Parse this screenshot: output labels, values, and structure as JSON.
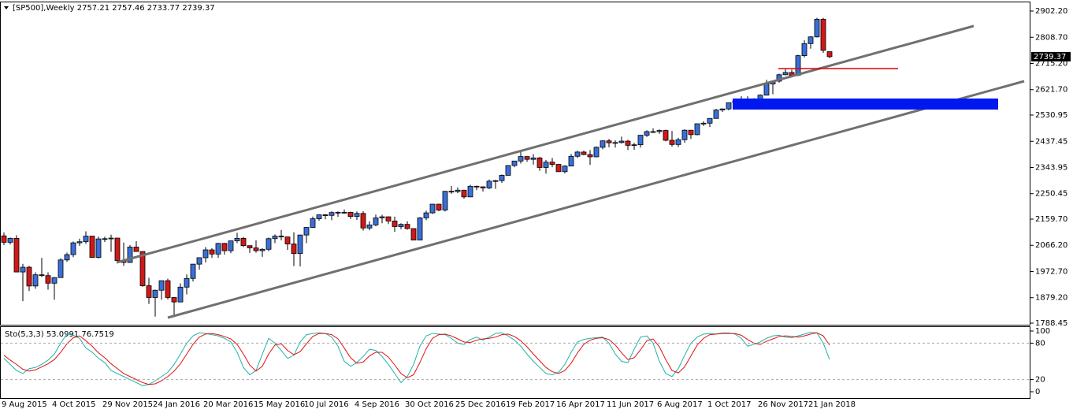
{
  "chart_data": [
    {
      "type": "candlestick",
      "title": "[SP500],Weekly  2757.21 2757.46 2733.77 2739.37",
      "price_label": "2739.37",
      "up_color": "#3a6fd8",
      "down_color": "#d01818",
      "ylim": [
        1782.8,
        2936.0
      ],
      "yticks": [
        {
          "value": 2902.2,
          "label": "2902.20"
        },
        {
          "value": 2808.7,
          "label": "2808.70"
        },
        {
          "value": 2715.2,
          "label": "2715.20"
        },
        {
          "value": 2621.7,
          "label": "2621.70"
        },
        2530.95,
        2437.45,
        2343.95,
        2250.45,
        {
          "value": 2159.7,
          "label": "2159.70"
        },
        {
          "value": 2066.2,
          "label": "2066.20"
        },
        {
          "value": 1972.7,
          "label": "1972.70"
        },
        {
          "value": 1879.2,
          "label": "1879.20"
        },
        1788.45
      ],
      "categories": [
        null,
        "9 Aug 2015",
        null,
        null,
        null,
        null,
        null,
        null,
        null,
        "4 Oct 2015",
        null,
        null,
        null,
        null,
        null,
        null,
        null,
        "29 Nov 2015",
        null,
        null,
        null,
        null,
        null,
        null,
        null,
        "24 Jan 2016",
        null,
        null,
        null,
        null,
        null,
        null,
        null,
        "20 Mar 2016",
        null,
        null,
        null,
        null,
        null,
        null,
        null,
        "15 May 2016",
        null,
        null,
        null,
        null,
        null,
        null,
        null,
        "10 Jul 2016",
        null,
        null,
        null,
        null,
        null,
        null,
        null,
        "4 Sep 2016",
        null,
        null,
        null,
        null,
        null,
        null,
        null,
        "30 Oct 2016",
        null,
        null,
        null,
        null,
        null,
        null,
        null,
        "25 Dec 2016",
        null,
        null,
        null,
        null,
        null,
        null,
        null,
        "19 Feb 2017",
        null,
        null,
        null,
        null,
        null,
        null,
        null,
        "16 Apr 2017",
        null,
        null,
        null,
        null,
        null,
        null,
        null,
        "11 Jun 2017",
        null,
        null,
        null,
        null,
        null,
        null,
        null,
        "6 Aug 2017",
        null,
        null,
        null,
        null,
        null,
        null,
        null,
        "1 Oct 2017",
        null,
        null,
        null,
        null,
        null,
        null,
        null,
        "26 Nov 2017",
        null,
        null,
        null,
        null,
        null,
        null,
        null,
        "21 Jan 2018",
        null,
        null
      ],
      "candles": [
        [
          2100,
          2112,
          2067,
          2077
        ],
        [
          2077,
          2094,
          2069,
          2091
        ],
        [
          2091,
          2102,
          1970,
          1971
        ],
        [
          1971,
          2000,
          1867,
          1988
        ],
        [
          1988,
          1993,
          1903,
          1921
        ],
        [
          1921,
          1970,
          1911,
          1961
        ],
        [
          1961,
          2021,
          1953,
          1958
        ],
        [
          1958,
          1970,
          1908,
          1931
        ],
        [
          1931,
          1953,
          1872,
          1951
        ],
        [
          1951,
          2020,
          1950,
          2014
        ],
        [
          2014,
          2040,
          2007,
          2033
        ],
        [
          2033,
          2080,
          2024,
          2075
        ],
        [
          2075,
          2090,
          2064,
          2079
        ],
        [
          2079,
          2116,
          2071,
          2099
        ],
        [
          2099,
          2100,
          2022,
          2023
        ],
        [
          2023,
          2097,
          2019,
          2089
        ],
        [
          2089,
          2097,
          2078,
          2090
        ],
        [
          2090,
          2104,
          2043,
          2092
        ],
        [
          2092,
          2093,
          2011,
          2012
        ],
        [
          2012,
          2076,
          1993,
          2005
        ],
        [
          2005,
          2067,
          2004,
          2060
        ],
        [
          2060,
          2081,
          2043,
          2044
        ],
        [
          2044,
          2045,
          1918,
          1922
        ],
        [
          1922,
          1950,
          1857,
          1880
        ],
        [
          1880,
          1908,
          1812,
          1906
        ],
        [
          1906,
          1940,
          1872,
          1940
        ],
        [
          1940,
          1947,
          1873,
          1880
        ],
        [
          1880,
          1881,
          1810,
          1864
        ],
        [
          1864,
          1930,
          1863,
          1917
        ],
        [
          1917,
          1962,
          1891,
          1948
        ],
        [
          1948,
          2000,
          1937,
          1999
        ],
        [
          1999,
          2023,
          1979,
          2022
        ],
        [
          2022,
          2060,
          2005,
          2050
        ],
        [
          2050,
          2056,
          2022,
          2035
        ],
        [
          2035,
          2075,
          2022,
          2073
        ],
        [
          2073,
          2075,
          2033,
          2047
        ],
        [
          2047,
          2083,
          2038,
          2082
        ],
        [
          2082,
          2111,
          2074,
          2091
        ],
        [
          2091,
          2096,
          2060,
          2065
        ],
        [
          2065,
          2066,
          2039,
          2057
        ],
        [
          2057,
          2084,
          2040,
          2047
        ],
        [
          2047,
          2056,
          2025,
          2052
        ],
        [
          2052,
          2094,
          2045,
          2090
        ],
        [
          2090,
          2105,
          2074,
          2099
        ],
        [
          2099,
          2121,
          2084,
          2096
        ],
        [
          2096,
          2097,
          2050,
          2071
        ],
        [
          2071,
          2113,
          1992,
          2037
        ],
        [
          2037,
          2104,
          1991,
          2103
        ],
        [
          2103,
          2131,
          2074,
          2130
        ],
        [
          2130,
          2169,
          2128,
          2161
        ],
        [
          2161,
          2176,
          2154,
          2175
        ],
        [
          2175,
          2178,
          2159,
          2173
        ],
        [
          2173,
          2188,
          2156,
          2183
        ],
        [
          2183,
          2187,
          2168,
          2184
        ],
        [
          2184,
          2194,
          2179,
          2184
        ],
        [
          2184,
          2186,
          2160,
          2169
        ],
        [
          2169,
          2187,
          2157,
          2180
        ],
        [
          2180,
          2188,
          2119,
          2128
        ],
        [
          2128,
          2152,
          2120,
          2139
        ],
        [
          2139,
          2176,
          2134,
          2164
        ],
        [
          2164,
          2175,
          2145,
          2168
        ],
        [
          2168,
          2169,
          2142,
          2153
        ],
        [
          2153,
          2169,
          2114,
          2133
        ],
        [
          2133,
          2145,
          2124,
          2141
        ],
        [
          2141,
          2152,
          2122,
          2126
        ],
        [
          2126,
          2127,
          2084,
          2085
        ],
        [
          2085,
          2167,
          2084,
          2164
        ],
        [
          2164,
          2190,
          2156,
          2182
        ],
        [
          2182,
          2214,
          2178,
          2213
        ],
        [
          2213,
          2214,
          2188,
          2192
        ],
        [
          2192,
          2260,
          2187,
          2259
        ],
        [
          2259,
          2278,
          2250,
          2258
        ],
        [
          2258,
          2273,
          2252,
          2263
        ],
        [
          2263,
          2264,
          2233,
          2239
        ],
        [
          2239,
          2282,
          2238,
          2277
        ],
        [
          2277,
          2279,
          2263,
          2275
        ],
        [
          2275,
          2276,
          2258,
          2271
        ],
        [
          2271,
          2301,
          2267,
          2295
        ],
        [
          2295,
          2300,
          2268,
          2297
        ],
        [
          2297,
          2319,
          2289,
          2316
        ],
        [
          2316,
          2352,
          2315,
          2351
        ],
        [
          2351,
          2368,
          2345,
          2367
        ],
        [
          2367,
          2401,
          2358,
          2383
        ],
        [
          2383,
          2384,
          2364,
          2373
        ],
        [
          2373,
          2391,
          2354,
          2378
        ],
        [
          2378,
          2382,
          2332,
          2344
        ],
        [
          2344,
          2371,
          2322,
          2363
        ],
        [
          2363,
          2378,
          2345,
          2355
        ],
        [
          2355,
          2357,
          2328,
          2329
        ],
        [
          2329,
          2352,
          2323,
          2349
        ],
        [
          2349,
          2392,
          2348,
          2384
        ],
        [
          2384,
          2404,
          2378,
          2399
        ],
        [
          2399,
          2404,
          2388,
          2390
        ],
        [
          2390,
          2406,
          2353,
          2382
        ],
        [
          2382,
          2419,
          2380,
          2416
        ],
        [
          2416,
          2441,
          2409,
          2439
        ],
        [
          2439,
          2446,
          2416,
          2432
        ],
        [
          2432,
          2441,
          2415,
          2433
        ],
        [
          2433,
          2454,
          2429,
          2438
        ],
        [
          2438,
          2443,
          2406,
          2423
        ],
        [
          2423,
          2432,
          2407,
          2425
        ],
        [
          2425,
          2460,
          2415,
          2459
        ],
        [
          2459,
          2477,
          2453,
          2472
        ],
        [
          2472,
          2484,
          2467,
          2472
        ],
        [
          2472,
          2480,
          2464,
          2476
        ],
        [
          2476,
          2479,
          2437,
          2441
        ],
        [
          2441,
          2474,
          2418,
          2426
        ],
        [
          2426,
          2450,
          2417,
          2443
        ],
        [
          2443,
          2480,
          2432,
          2477
        ],
        [
          2477,
          2477,
          2446,
          2461
        ],
        [
          2461,
          2500,
          2459,
          2500
        ],
        [
          2500,
          2509,
          2492,
          2502
        ],
        [
          2502,
          2520,
          2488,
          2519
        ],
        [
          2519,
          2553,
          2518,
          2549
        ],
        [
          2549,
          2555,
          2542,
          2553
        ],
        [
          2553,
          2575,
          2548,
          2575
        ],
        [
          2575,
          2583,
          2556,
          2581
        ],
        [
          2581,
          2598,
          2566,
          2588
        ],
        [
          2588,
          2598,
          2573,
          2582
        ],
        [
          2582,
          2591,
          2557,
          2579
        ],
        [
          2579,
          2605,
          2578,
          2602
        ],
        [
          2602,
          2657,
          2601,
          2642
        ],
        [
          2642,
          2652,
          2605,
          2652
        ],
        [
          2652,
          2679,
          2647,
          2675
        ],
        [
          2675,
          2695,
          2673,
          2683
        ],
        [
          2683,
          2693,
          2669,
          2673
        ],
        [
          2673,
          2746,
          2670,
          2743
        ],
        [
          2743,
          2798,
          2737,
          2786
        ],
        [
          2786,
          2813,
          2768,
          2810
        ],
        [
          2810,
          2878,
          2808,
          2873
        ],
        [
          2873,
          2878,
          2753,
          2762
        ],
        [
          2757.21,
          2757.46,
          2733.77,
          2739.37
        ]
      ]
    },
    {
      "type": "line",
      "title": "Sto(5,3,3) 53.0991 76.7519",
      "ylim": [
        -10.4,
        106.5
      ],
      "yticks": [
        0,
        20,
        80,
        100
      ],
      "series": [
        {
          "color": "#20b2aa",
          "values": [
            55,
            45,
            35,
            30,
            38,
            40,
            45,
            52,
            62,
            80,
            95,
            93,
            88,
            72,
            65,
            55,
            48,
            35,
            30,
            25,
            20,
            15,
            10,
            12,
            18,
            25,
            32,
            45,
            62,
            80,
            92,
            97,
            96,
            94,
            92,
            88,
            82,
            65,
            40,
            28,
            35,
            62,
            88,
            80,
            68,
            55,
            60,
            82,
            94,
            96,
            97,
            96,
            90,
            75,
            50,
            42,
            48,
            58,
            70,
            68,
            58,
            45,
            30,
            15,
            25,
            45,
            75,
            92,
            96,
            95,
            94,
            88,
            80,
            78,
            86,
            90,
            85,
            90,
            96,
            97,
            92,
            85,
            75,
            62,
            50,
            40,
            30,
            28,
            32,
            45,
            65,
            82,
            86,
            88,
            89,
            90,
            80,
            62,
            50,
            48,
            70,
            90,
            92,
            80,
            50,
            30,
            25,
            38,
            60,
            80,
            90,
            95,
            96,
            95,
            97,
            97,
            95,
            88,
            75,
            78,
            82,
            88,
            92,
            93,
            90,
            89,
            92,
            95,
            98,
            97,
            80,
            53.0991
          ]
        },
        {
          "color": "#e01010",
          "values": [
            60,
            52,
            45,
            37,
            34,
            36,
            41,
            46,
            53,
            65,
            79,
            89,
            92,
            84,
            75,
            64,
            56,
            46,
            38,
            30,
            25,
            20,
            15,
            12,
            13,
            18,
            25,
            34,
            46,
            62,
            78,
            90,
            95,
            96,
            94,
            91,
            87,
            78,
            62,
            44,
            34,
            42,
            62,
            77,
            79,
            68,
            61,
            66,
            79,
            91,
            96,
            96,
            94,
            87,
            72,
            56,
            47,
            49,
            59,
            65,
            65,
            57,
            44,
            30,
            23,
            28,
            48,
            71,
            88,
            94,
            95,
            92,
            87,
            82,
            81,
            85,
            87,
            88,
            90,
            94,
            95,
            91,
            84,
            74,
            62,
            51,
            40,
            33,
            30,
            35,
            47,
            64,
            78,
            85,
            88,
            89,
            86,
            77,
            64,
            53,
            56,
            69,
            84,
            87,
            74,
            53,
            35,
            31,
            41,
            59,
            77,
            88,
            94,
            95,
            96,
            96,
            96,
            93,
            86,
            80,
            78,
            83,
            87,
            91,
            92,
            91,
            90,
            92,
            95,
            97,
            92,
            76.7519
          ]
        }
      ]
    }
  ]
}
